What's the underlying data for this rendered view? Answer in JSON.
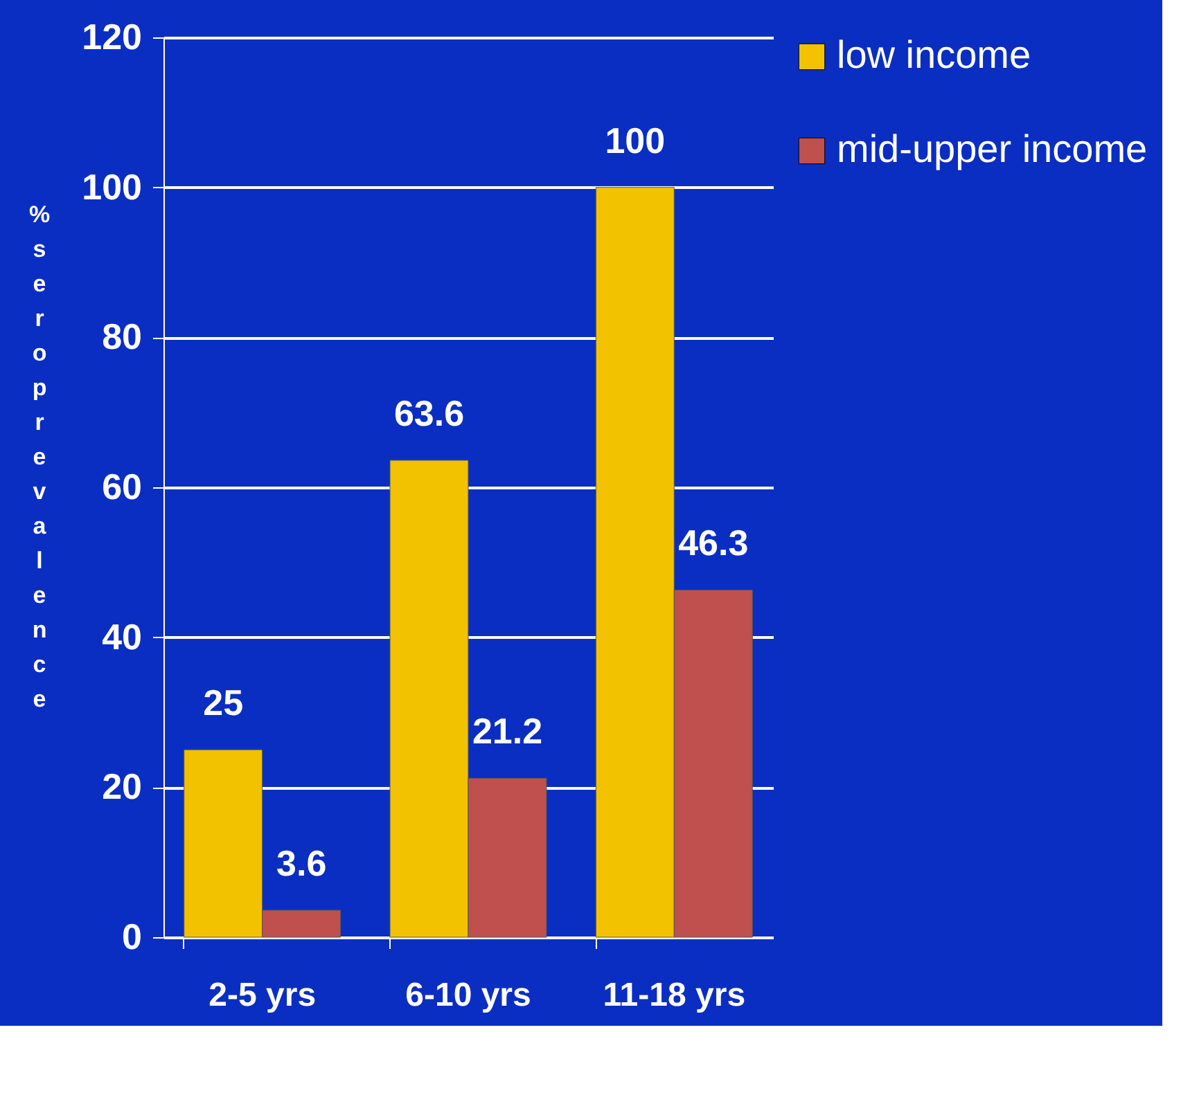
{
  "chart_data": {
    "type": "bar",
    "ylabel": "% seroprevalence",
    "categories": [
      "2-5 yrs",
      "6-10 yrs",
      "11-18 yrs"
    ],
    "series": [
      {
        "name": "low income",
        "color": "#f2c200",
        "values": [
          25,
          63.6,
          100
        ]
      },
      {
        "name": "mid-upper income",
        "color": "#c0504d",
        "values": [
          3.6,
          21.2,
          46.3
        ]
      }
    ],
    "ylim": [
      0,
      120
    ],
    "yticks": [
      0,
      20,
      40,
      60,
      80,
      100,
      120
    ],
    "grid": "y",
    "legend": "right",
    "data_labels": true
  }
}
